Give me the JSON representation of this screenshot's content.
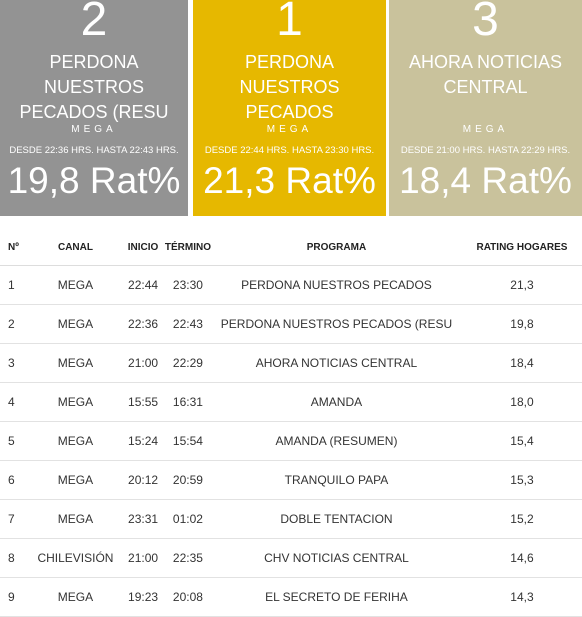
{
  "top_cards": [
    {
      "rank": "2",
      "program": "PERDONA NUESTROS PECADOS (RESU",
      "channel": "MEGA",
      "schedule": "DESDE 22:36 HRS. HASTA 22:43 HRS.",
      "rating": "19,8 Rat%",
      "color": "#939393"
    },
    {
      "rank": "1",
      "program": "PERDONA NUESTROS PECADOS",
      "channel": "MEGA",
      "schedule": "DESDE 22:44 HRS. HASTA 23:30 HRS.",
      "rating": "21,3 Rat%",
      "color": "#e6b800"
    },
    {
      "rank": "3",
      "program": "AHORA NOTICIAS CENTRAL",
      "channel": "MEGA",
      "schedule": "DESDE 21:00 HRS. HASTA 22:29 HRS.",
      "rating": "18,4 Rat%",
      "color": "#c9c29c"
    }
  ],
  "table": {
    "headers": {
      "num": "Nº",
      "canal": "CANAL",
      "inicio": "INICIO",
      "termino": "TÉRMINO",
      "programa": "PROGRAMA",
      "rating": "RATING HOGARES"
    },
    "rows": [
      {
        "num": "1",
        "canal": "MEGA",
        "inicio": "22:44",
        "termino": "23:30",
        "programa": "PERDONA NUESTROS PECADOS",
        "rating": "21,3"
      },
      {
        "num": "2",
        "canal": "MEGA",
        "inicio": "22:36",
        "termino": "22:43",
        "programa": "PERDONA NUESTROS PECADOS (RESU",
        "rating": "19,8"
      },
      {
        "num": "3",
        "canal": "MEGA",
        "inicio": "21:00",
        "termino": "22:29",
        "programa": "AHORA NOTICIAS CENTRAL",
        "rating": "18,4"
      },
      {
        "num": "4",
        "canal": "MEGA",
        "inicio": "15:55",
        "termino": "16:31",
        "programa": "AMANDA",
        "rating": "18,0"
      },
      {
        "num": "5",
        "canal": "MEGA",
        "inicio": "15:24",
        "termino": "15:54",
        "programa": "AMANDA (RESUMEN)",
        "rating": "15,4"
      },
      {
        "num": "6",
        "canal": "MEGA",
        "inicio": "20:12",
        "termino": "20:59",
        "programa": "TRANQUILO PAPA",
        "rating": "15,3"
      },
      {
        "num": "7",
        "canal": "MEGA",
        "inicio": "23:31",
        "termino": "01:02",
        "programa": "DOBLE TENTACION",
        "rating": "15,2"
      },
      {
        "num": "8",
        "canal": "CHILEVISIÓN",
        "inicio": "21:00",
        "termino": "22:35",
        "programa": "CHV NOTICIAS CENTRAL",
        "rating": "14,6"
      },
      {
        "num": "9",
        "canal": "MEGA",
        "inicio": "19:23",
        "termino": "20:08",
        "programa": "EL SECRETO DE FERIHA",
        "rating": "14,3"
      }
    ]
  }
}
